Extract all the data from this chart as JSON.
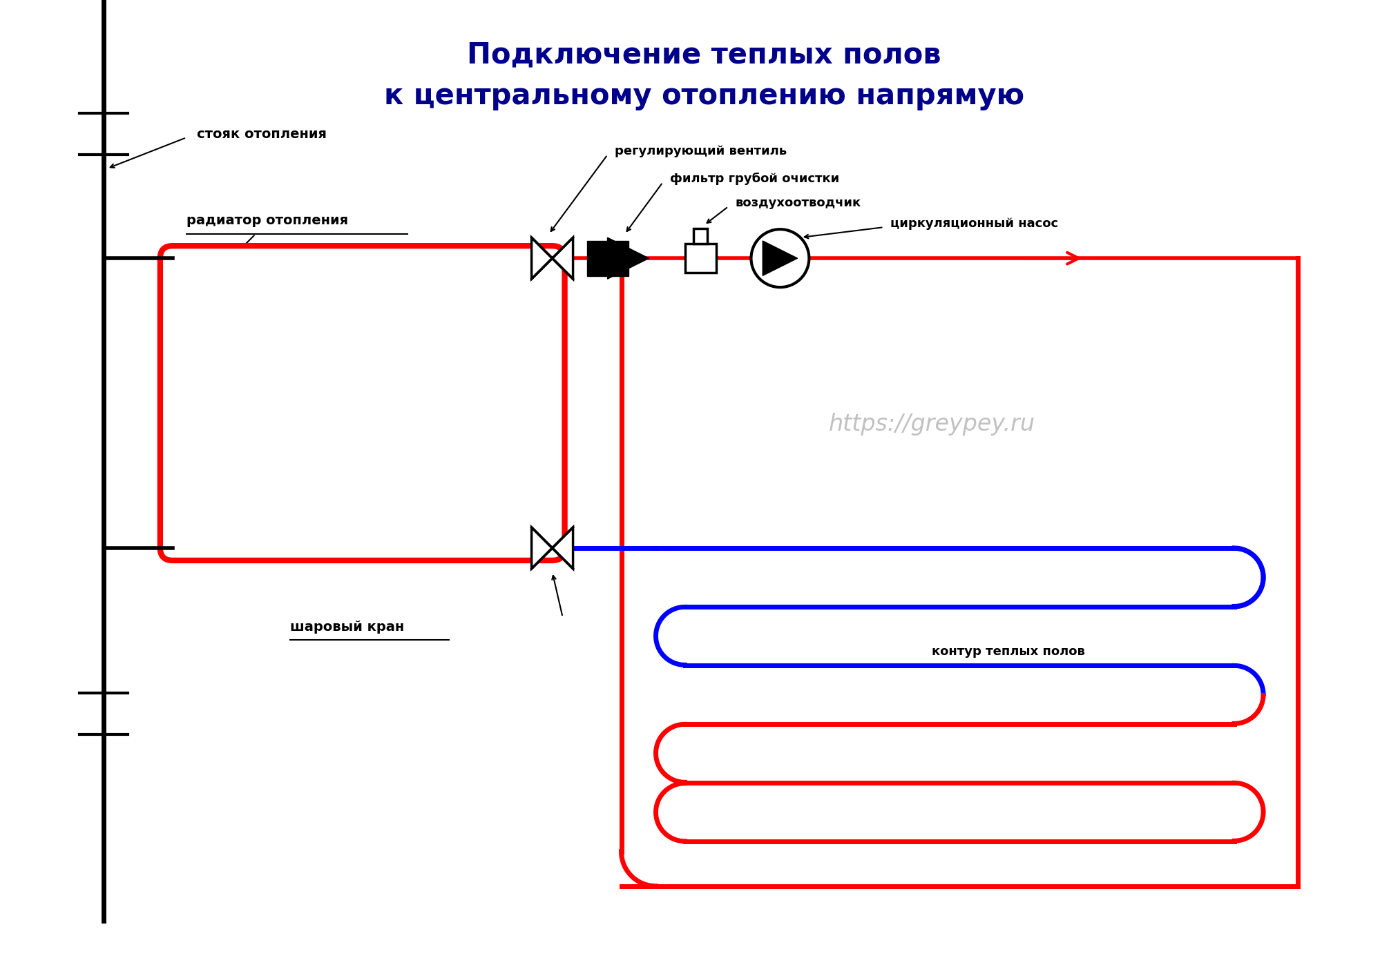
{
  "title_line1": "Подключение теплых полов",
  "title_line2": "к центральному отоплению напрямую",
  "title_color": "#00008B",
  "bg_color": "#FFFFFF",
  "watermark": "https://greypey.ru",
  "label_stoyk": "стояк отопления",
  "label_radiator": "радиатор отопления",
  "label_reg_ventil": "регулирующий вентиль",
  "label_filtr": "фильтр грубой очистки",
  "label_vozduh": "воздухоотводчик",
  "label_nasos": "циркуляционный насос",
  "label_sharovyi": "шаровый кран",
  "label_kontur": "контур теплых полов",
  "red_color": "#FF0000",
  "blue_color": "#0000FF",
  "black_color": "#000000",
  "pipe_lw": 4,
  "component_lw": 2.5
}
